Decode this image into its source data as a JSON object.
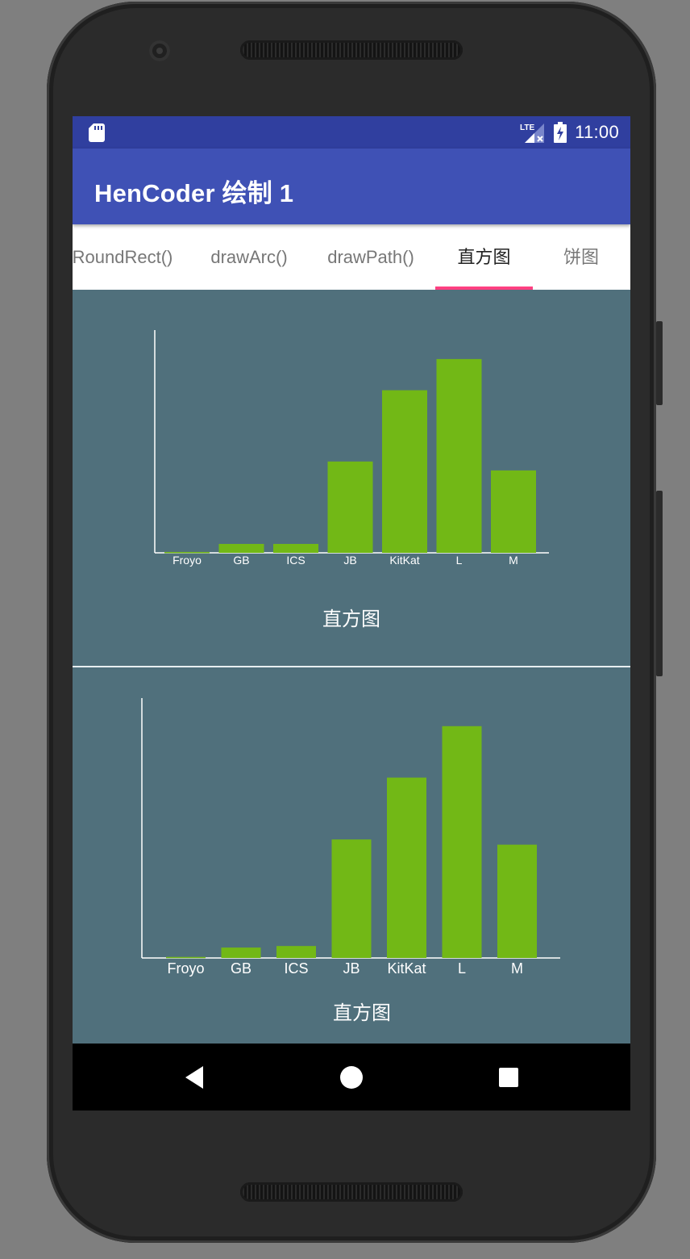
{
  "status_bar": {
    "time": "11:00",
    "network_label": "LTE",
    "icons": [
      "sd-card-icon",
      "signal-icon",
      "battery-charging-icon"
    ]
  },
  "app_bar": {
    "title": "HenCoder 绘制 1"
  },
  "tabs": [
    {
      "label": "RoundRect()",
      "active": false
    },
    {
      "label": "drawArc()",
      "active": false
    },
    {
      "label": "drawPath()",
      "active": false
    },
    {
      "label": "直方图",
      "active": true
    },
    {
      "label": "饼图",
      "active": false
    }
  ],
  "colors": {
    "status_bar": "#303f9f",
    "app_bar": "#3f51b5",
    "accent": "#ff4081",
    "content_bg": "#50707c",
    "bar": "#72b816",
    "axis": "#ffffff"
  },
  "charts": {
    "top": {
      "title": "直方图"
    },
    "bottom": {
      "title": "直方图"
    }
  },
  "chart_data": [
    {
      "type": "bar",
      "categories": [
        "Froyo",
        "GB",
        "ICS",
        "JB",
        "KitKat",
        "L",
        "M"
      ],
      "values": [
        0.4,
        4,
        4,
        41,
        73,
        87,
        37
      ],
      "title": "直方图",
      "xlabel": "",
      "ylabel": "",
      "ylim": [
        0,
        100
      ],
      "grid": false
    },
    {
      "type": "bar",
      "categories": [
        "Froyo",
        "GB",
        "ICS",
        "JB",
        "KitKat",
        "L",
        "M"
      ],
      "values": [
        0.4,
        4,
        4.6,
        45.6,
        69.4,
        89.2,
        43.6
      ],
      "title": "直方图",
      "xlabel": "",
      "ylabel": "",
      "ylim": [
        0,
        100
      ],
      "grid": false
    }
  ],
  "nav_bar": {
    "icons": [
      "back-icon",
      "home-icon",
      "recents-icon"
    ]
  }
}
